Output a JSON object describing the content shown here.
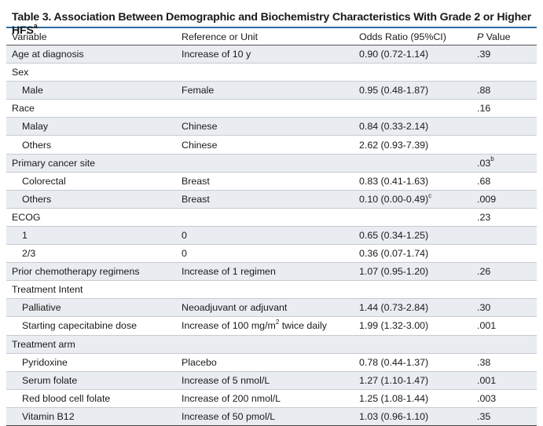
{
  "title": {
    "text": "Table 3. Association Between Demographic and Biochemistry Characteristics With Grade 2 or Higher HFS",
    "sup": "a"
  },
  "columns": {
    "variable": "Variable",
    "reference": "Reference or Unit",
    "odds_ratio": "Odds Ratio (95%CI)",
    "p_value_italic": "P",
    "p_value_rest": " Value"
  },
  "rows": [
    {
      "variable": "Age at diagnosis",
      "indent": false,
      "reference": "Increase of 10 y",
      "or": "0.90 (0.72-1.14)",
      "or_sup": "",
      "p": ".39",
      "p_sup": ""
    },
    {
      "variable": "Sex",
      "indent": false,
      "reference": "",
      "or": "",
      "or_sup": "",
      "p": "",
      "p_sup": ""
    },
    {
      "variable": "Male",
      "indent": true,
      "reference": "Female",
      "or": "0.95 (0.48-1.87)",
      "or_sup": "",
      "p": ".88",
      "p_sup": ""
    },
    {
      "variable": "Race",
      "indent": false,
      "reference": "",
      "or": "",
      "or_sup": "",
      "p": ".16",
      "p_sup": ""
    },
    {
      "variable": "Malay",
      "indent": true,
      "reference": "Chinese",
      "or": "0.84 (0.33-2.14)",
      "or_sup": "",
      "p": "",
      "p_sup": ""
    },
    {
      "variable": "Others",
      "indent": true,
      "reference": "Chinese",
      "or": "2.62 (0.93-7.39)",
      "or_sup": "",
      "p": "",
      "p_sup": ""
    },
    {
      "variable": "Primary cancer site",
      "indent": false,
      "reference": "",
      "or": "",
      "or_sup": "",
      "p": ".03",
      "p_sup": "b"
    },
    {
      "variable": "Colorectal",
      "indent": true,
      "reference": "Breast",
      "or": "0.83 (0.41-1.63)",
      "or_sup": "",
      "p": ".68",
      "p_sup": ""
    },
    {
      "variable": "Others",
      "indent": true,
      "reference": "Breast",
      "or": "0.10 (0.00-0.49)",
      "or_sup": "c",
      "p": ".009",
      "p_sup": ""
    },
    {
      "variable": "ECOG",
      "indent": false,
      "reference": "",
      "or": "",
      "or_sup": "",
      "p": ".23",
      "p_sup": ""
    },
    {
      "variable": "1",
      "indent": true,
      "reference": "0",
      "or": "0.65 (0.34-1.25)",
      "or_sup": "",
      "p": "",
      "p_sup": ""
    },
    {
      "variable": "2/3",
      "indent": true,
      "reference": "0",
      "or": "0.36 (0.07-1.74)",
      "or_sup": "",
      "p": "",
      "p_sup": ""
    },
    {
      "variable": "Prior chemotherapy regimens",
      "indent": false,
      "reference": "Increase of 1 regimen",
      "or": "1.07 (0.95-1.20)",
      "or_sup": "",
      "p": ".26",
      "p_sup": ""
    },
    {
      "variable": "Treatment Intent",
      "indent": false,
      "reference": "",
      "or": "",
      "or_sup": "",
      "p": "",
      "p_sup": ""
    },
    {
      "variable": "Palliative",
      "indent": true,
      "reference": "Neoadjuvant or adjuvant",
      "or": "1.44 (0.73-2.84)",
      "or_sup": "",
      "p": ".30",
      "p_sup": ""
    },
    {
      "variable": "Starting capecitabine dose",
      "indent": true,
      "reference": "Increase of 100 mg/m",
      "reference_sup": "2",
      "reference_tail": " twice daily",
      "or": "1.99 (1.32-3.00)",
      "or_sup": "",
      "p": ".001",
      "p_sup": ""
    },
    {
      "variable": "Treatment arm",
      "indent": false,
      "reference": "",
      "or": "",
      "or_sup": "",
      "p": "",
      "p_sup": ""
    },
    {
      "variable": "Pyridoxine",
      "indent": true,
      "reference": "Placebo",
      "or": "0.78 (0.44-1.37)",
      "or_sup": "",
      "p": ".38",
      "p_sup": ""
    },
    {
      "variable": "Serum folate",
      "indent": true,
      "reference": "Increase of 5 nmol/L",
      "or": "1.27 (1.10-1.47)",
      "or_sup": "",
      "p": ".001",
      "p_sup": ""
    },
    {
      "variable": "Red blood cell folate",
      "indent": true,
      "reference": "Increase of 200 nmol/L",
      "or": "1.25 (1.08-1.44)",
      "or_sup": "",
      "p": ".003",
      "p_sup": ""
    },
    {
      "variable": "Vitamin B12",
      "indent": true,
      "reference": "Increase of 50 pmol/L",
      "or": "1.03 (0.96-1.10)",
      "or_sup": "",
      "p": ".35",
      "p_sup": ""
    }
  ],
  "colors": {
    "title_rule": "#2b6ca3",
    "band": "#e9ecf1"
  }
}
